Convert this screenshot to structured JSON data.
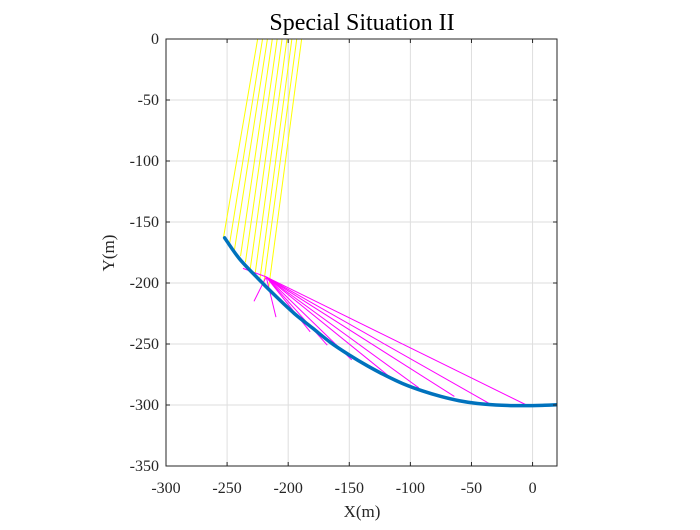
{
  "chart_data": {
    "type": "line",
    "title": "Special Situation II",
    "xlabel": "X(m)",
    "ylabel": "Y(m)",
    "xlim": [
      -300,
      20
    ],
    "ylim": [
      -350,
      0
    ],
    "x_ticks": [
      -300,
      -250,
      -200,
      -150,
      -100,
      -50,
      0
    ],
    "y_ticks": [
      0,
      -50,
      -100,
      -150,
      -200,
      -250,
      -300,
      -350
    ],
    "grid": true,
    "legend": "none",
    "colors": {
      "trajectory": "#0072BD",
      "incoming_lines": "#FFFF00",
      "reflected_lines": "#FF00FF"
    },
    "series": [
      {
        "style": "trajectory",
        "x": [
          -252,
          -240,
          -225,
          -210,
          -195,
          -180,
          -165,
          -150,
          -135,
          -120,
          -105,
          -90,
          -75,
          -60,
          -45,
          -30,
          -15,
          0,
          10,
          20
        ],
        "y": [
          -163,
          -180,
          -196,
          -211,
          -225,
          -237,
          -249,
          -259,
          -268,
          -276,
          -283,
          -288.5,
          -293,
          -296.5,
          -298.8,
          -300,
          -300.5,
          -300.5,
          -300.2,
          -299.8
        ]
      }
    ],
    "line_groups": [
      {
        "style": "incoming_lines",
        "segments": [
          {
            "x": [
              -225,
              -253
            ],
            "y": [
              0,
              -163
            ]
          },
          {
            "x": [
              -221,
              -248
            ],
            "y": [
              0,
              -168
            ]
          },
          {
            "x": [
              -217,
              -244
            ],
            "y": [
              0,
              -173
            ]
          },
          {
            "x": [
              -213,
              -239
            ],
            "y": [
              0,
              -178
            ]
          },
          {
            "x": [
              -209,
              -235
            ],
            "y": [
              0,
              -183
            ]
          },
          {
            "x": [
              -205,
              -231
            ],
            "y": [
              0,
              -188
            ]
          },
          {
            "x": [
              -201,
              -227
            ],
            "y": [
              0,
              -192
            ]
          },
          {
            "x": [
              -197,
              -223
            ],
            "y": [
              0,
              -196
            ]
          },
          {
            "x": [
              -193,
              -220
            ],
            "y": [
              0,
              -200
            ]
          },
          {
            "x": [
              -189,
              -216
            ],
            "y": [
              0,
              -204
            ]
          }
        ]
      },
      {
        "style": "reflected_lines",
        "segments": [
          {
            "x": [
              -218,
              -237
            ],
            "y": [
              -195,
              -188
            ]
          },
          {
            "x": [
              -218,
              -228
            ],
            "y": [
              -195,
              -215
            ]
          },
          {
            "x": [
              -218,
              -210
            ],
            "y": [
              -195,
              -228
            ]
          },
          {
            "x": [
              -218,
              -182
            ],
            "y": [
              -195,
              -240
            ]
          },
          {
            "x": [
              -218,
              -168
            ],
            "y": [
              -195,
              -251
            ]
          },
          {
            "x": [
              -218,
              -148
            ],
            "y": [
              -195,
              -263
            ]
          },
          {
            "x": [
              -218,
              -118
            ],
            "y": [
              -195,
              -276
            ]
          },
          {
            "x": [
              -218,
              -93
            ],
            "y": [
              -195,
              -286
            ]
          },
          {
            "x": [
              -218,
              -64
            ],
            "y": [
              -195,
              -293
            ]
          },
          {
            "x": [
              -218,
              -35
            ],
            "y": [
              -195,
              -299
            ]
          },
          {
            "x": [
              -218,
              -5
            ],
            "y": [
              -195,
              -300
            ]
          }
        ]
      }
    ]
  }
}
